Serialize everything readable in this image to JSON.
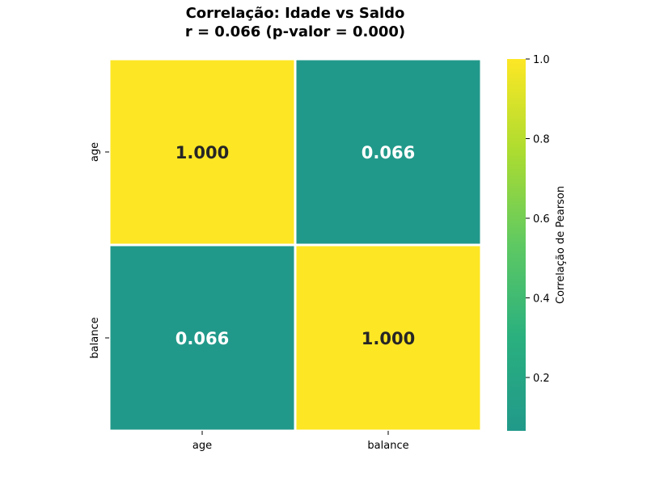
{
  "chart_data": {
    "type": "heatmap",
    "title_lines": [
      "Correlação: Idade vs Saldo",
      "r = 0.066 (p-valor = 0.000)"
    ],
    "rows": [
      "age",
      "balance"
    ],
    "cols": [
      "age",
      "balance"
    ],
    "values": [
      [
        1.0,
        0.066
      ],
      [
        0.066,
        1.0
      ]
    ],
    "value_labels": [
      [
        "1.000",
        "0.066"
      ],
      [
        "0.066",
        "1.000"
      ]
    ],
    "colorbar": {
      "label": "Correlação de Pearson",
      "min": 0.066,
      "max": 1.0,
      "ticks": [
        0.2,
        0.4,
        0.6,
        0.8,
        1.0
      ],
      "tick_labels": [
        "0.2",
        "0.4",
        "0.6",
        "0.8",
        "1.0"
      ],
      "colormap": "viridis-upper",
      "color_low": "#21998a",
      "color_high": "#fde725"
    },
    "label_colors": {
      "dark": "#262626",
      "light": "#ffffff"
    },
    "grid": false
  }
}
